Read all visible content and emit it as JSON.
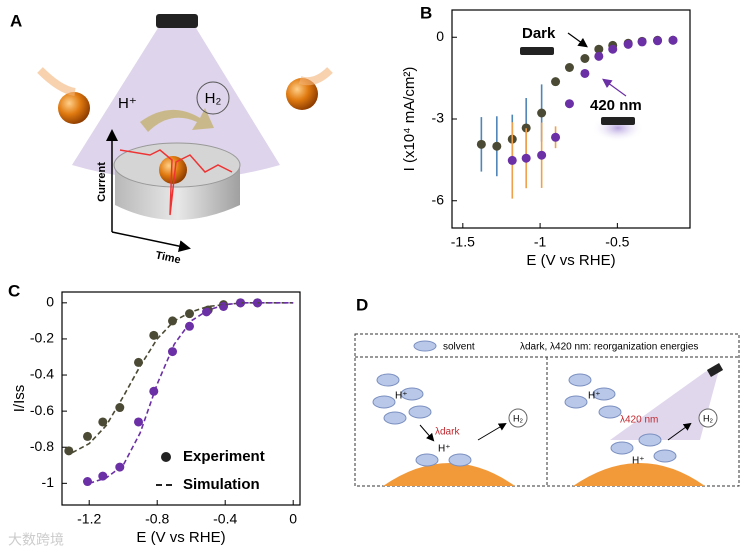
{
  "panel_a": {
    "label": "A",
    "h_plus": "H⁺",
    "h2": "H₂",
    "current": "Current",
    "time": "Time"
  },
  "chart_data": [
    {
      "type": "scatter",
      "panel": "B",
      "x_label": "E (V vs RHE)",
      "y_label": "I (x10⁴ mA/cm²)",
      "xlim": [
        -1.57,
        -0.03
      ],
      "xticks": [
        -1.5,
        -1,
        -0.5
      ],
      "ylim": [
        -7,
        1
      ],
      "yticks": [
        0,
        -3,
        -6
      ],
      "annotations": [
        "Dark",
        "420 nm"
      ],
      "series": [
        {
          "color": "#4b4a34",
          "error_color": "#4f86b8",
          "x": [
            -1.38,
            -1.28,
            -1.18,
            -1.09,
            -0.99,
            -0.9,
            -0.81,
            -0.71,
            -0.62,
            -0.53,
            -0.43,
            -0.34,
            -0.24,
            -0.14
          ],
          "values": [
            -3.93,
            -4.0,
            -3.74,
            -3.33,
            -2.78,
            -1.63,
            -1.11,
            -0.78,
            -0.44,
            -0.3,
            -0.22,
            -0.15,
            -0.11,
            -0.11
          ],
          "errors": [
            1.0,
            1.1,
            0.9,
            1.1,
            1.05,
            null,
            null,
            null,
            null,
            null,
            null,
            null,
            null,
            null
          ]
        },
        {
          "color": "#6b2fa6",
          "error_color": "#f0a04a",
          "x": [
            -1.18,
            -1.09,
            -0.99,
            -0.9,
            -0.81,
            -0.71,
            -0.62,
            -0.53,
            -0.43,
            -0.34,
            -0.24,
            -0.14
          ],
          "values": [
            -4.52,
            -4.44,
            -4.33,
            -3.67,
            -2.44,
            -1.33,
            -0.7,
            -0.44,
            -0.26,
            -0.17,
            -0.13,
            -0.11
          ],
          "errors": [
            1.4,
            1.1,
            1.2,
            0.4,
            null,
            null,
            null,
            null,
            null,
            null,
            null,
            null
          ]
        }
      ]
    },
    {
      "type": "scatter",
      "panel": "C",
      "x_label": "E (V vs RHE)",
      "y_label": "I/Iss",
      "xlim": [
        -1.36,
        0.04
      ],
      "xticks": [
        -1.2,
        -0.8,
        -0.4,
        0
      ],
      "ylim": [
        -1.12,
        0.06
      ],
      "yticks": [
        0,
        -0.2,
        -0.4,
        -0.6,
        -0.8,
        -1
      ],
      "legend": [
        "Experiment",
        "Simulation"
      ],
      "series": [
        {
          "color": "#4b4a34",
          "style": "markers",
          "x": [
            -1.32,
            -1.21,
            -1.12,
            -1.02,
            -0.91,
            -0.82,
            -0.71,
            -0.61,
            -0.5,
            -0.41,
            -0.31,
            -0.21
          ],
          "values": [
            -0.82,
            -0.74,
            -0.66,
            -0.58,
            -0.33,
            -0.18,
            -0.1,
            -0.06,
            -0.04,
            -0.01,
            0,
            0
          ]
        },
        {
          "color": "#6b2fa6",
          "style": "markers",
          "x": [
            -1.21,
            -1.12,
            -1.02,
            -0.91,
            -0.82,
            -0.71,
            -0.61,
            -0.51,
            -0.41,
            -0.31,
            -0.21
          ],
          "values": [
            -0.99,
            -0.96,
            -0.91,
            -0.66,
            -0.49,
            -0.27,
            -0.13,
            -0.05,
            -0.02,
            0,
            0
          ]
        },
        {
          "color": "#4b4a34",
          "style": "dashed",
          "x": [
            -1.3,
            -1.2,
            -1.1,
            -1.0,
            -0.9,
            -0.8,
            -0.7,
            -0.6,
            -0.5,
            -0.4,
            -0.3,
            -0.2,
            -0.1,
            0
          ],
          "values": [
            -0.83,
            -0.78,
            -0.68,
            -0.52,
            -0.35,
            -0.2,
            -0.1,
            -0.05,
            -0.02,
            -0.01,
            0,
            0,
            0,
            0
          ]
        },
        {
          "color": "#6b2fa6",
          "style": "dashed",
          "x": [
            -1.2,
            -1.1,
            -1.0,
            -0.9,
            -0.8,
            -0.7,
            -0.6,
            -0.5,
            -0.4,
            -0.3,
            -0.2,
            -0.1,
            0
          ],
          "values": [
            -1.0,
            -0.97,
            -0.9,
            -0.72,
            -0.45,
            -0.23,
            -0.1,
            -0.04,
            -0.01,
            0,
            0,
            0,
            0
          ]
        }
      ]
    }
  ],
  "panel_d": {
    "label": "D",
    "solvent": "solvent",
    "legend_note": "λdark, λ420 nm: reorganization energies",
    "h_plus": "H⁺",
    "h2": "H₂",
    "lambda_dark": "λdark",
    "lambda_420": "λ420 nm"
  },
  "watermark": "大数跨境"
}
